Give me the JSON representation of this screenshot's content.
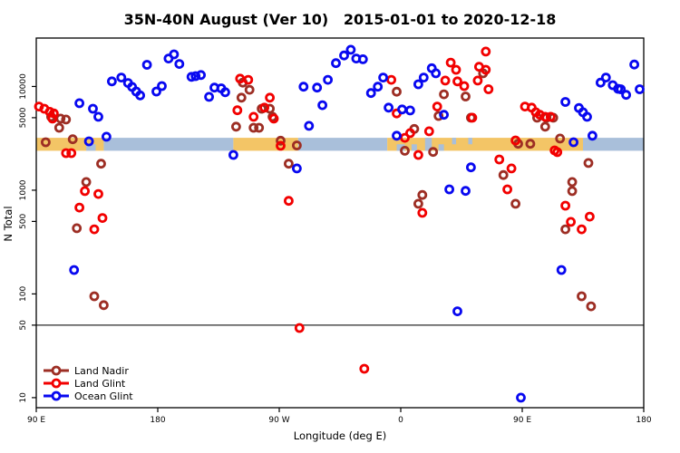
{
  "title": "35N-40N August (Ver 10)   2015-01-01 to 2020-12-18",
  "colors": {
    "land_nadir": "#9D2E24",
    "land_glint": "#F20000",
    "ocean_glint": "#0808F0",
    "band_land": "#F3C566",
    "band_ocean": "#A9BFDA",
    "frame": "#000000",
    "reference_line": "#2b2b2b"
  },
  "chart_data": {
    "type": "scatter",
    "title": "35N-40N August (Ver 10)   2015-01-01 to 2020-12-18",
    "xlabel": "Longitude (deg E)",
    "ylabel": "N Total",
    "x_axis": {
      "domain": [
        90,
        540
      ],
      "ticks": [
        {
          "value": 90,
          "label": "90 E"
        },
        {
          "value": 180,
          "label": "180"
        },
        {
          "value": 270,
          "label": "90 W"
        },
        {
          "value": 360,
          "label": "0"
        },
        {
          "value": 450,
          "label": "90 E"
        },
        {
          "value": 540,
          "label": "180"
        }
      ]
    },
    "y_axis": {
      "scale": "log",
      "domain": [
        8,
        29300
      ],
      "ticks": [
        {
          "value": 10,
          "label": "10"
        },
        {
          "value": 50,
          "label": "50"
        },
        {
          "value": 100,
          "label": "100"
        },
        {
          "value": 500,
          "label": "500"
        },
        {
          "value": 1000,
          "label": "1000"
        },
        {
          "value": 5000,
          "label": "5000"
        },
        {
          "value": 10000,
          "label": "10000"
        }
      ]
    },
    "reference_line_y": 50,
    "land_ocean_band": {
      "n_range": [
        2400,
        3200
      ],
      "segments": [
        {
          "from": 90,
          "to": 140,
          "type": "land"
        },
        {
          "from": 140,
          "to": 236,
          "type": "ocean"
        },
        {
          "from": 236,
          "to": 284,
          "type": "land"
        },
        {
          "from": 284,
          "to": 350,
          "type": "ocean"
        },
        {
          "from": 350,
          "to": 495,
          "type": "land"
        },
        {
          "from": 495,
          "to": 540,
          "type": "ocean"
        }
      ],
      "speckles": [
        {
          "from": 127,
          "to": 134,
          "pos": "bottom",
          "type": "ocean"
        },
        {
          "from": 357,
          "to": 363,
          "pos": "bottom",
          "type": "ocean"
        },
        {
          "from": 368,
          "to": 372,
          "pos": "bottom",
          "type": "ocean"
        },
        {
          "from": 378,
          "to": 383,
          "pos": "full",
          "type": "ocean"
        },
        {
          "from": 388,
          "to": 392,
          "pos": "bottom",
          "type": "ocean"
        },
        {
          "from": 398,
          "to": 401,
          "pos": "top",
          "type": "ocean"
        },
        {
          "from": 410,
          "to": 413,
          "pos": "top",
          "type": "ocean"
        }
      ]
    },
    "legend": {
      "position": "bottom-left"
    },
    "series": [
      {
        "name": "Land Nadir",
        "color_key": "land_nadir",
        "points": [
          [
            101,
            5100
          ],
          [
            108,
            4900
          ],
          [
            112,
            4800
          ],
          [
            107,
            4000
          ],
          [
            117,
            3100
          ],
          [
            97,
            2900
          ],
          [
            138,
            1800
          ],
          [
            127,
            1200
          ],
          [
            120,
            430
          ],
          [
            133,
            95
          ],
          [
            140,
            78
          ],
          [
            243,
            10900
          ],
          [
            248,
            9300
          ],
          [
            242,
            7800
          ],
          [
            257,
            6100
          ],
          [
            263,
            6100
          ],
          [
            265,
            5100
          ],
          [
            238,
            4100
          ],
          [
            251,
            4000
          ],
          [
            255,
            4000
          ],
          [
            271,
            3000
          ],
          [
            283,
            2700
          ],
          [
            277,
            1800
          ],
          [
            357,
            8900
          ],
          [
            392,
            8400
          ],
          [
            408,
            8000
          ],
          [
            421,
            13400
          ],
          [
            388,
            5200
          ],
          [
            412,
            5000
          ],
          [
            370,
            3900
          ],
          [
            363,
            2400
          ],
          [
            384,
            2340
          ],
          [
            376,
            900
          ],
          [
            373,
            740
          ],
          [
            436,
            1400
          ],
          [
            461,
            5000
          ],
          [
            468,
            5000
          ],
          [
            473,
            5000
          ],
          [
            467,
            4100
          ],
          [
            447,
            2800
          ],
          [
            456,
            2800
          ],
          [
            478,
            3150
          ],
          [
            445,
            740
          ],
          [
            487,
            1200
          ],
          [
            487,
            980
          ],
          [
            499,
            1830
          ],
          [
            482,
            420
          ],
          [
            494,
            95
          ],
          [
            501,
            76
          ]
        ]
      },
      {
        "name": "Land Glint",
        "color_key": "land_glint",
        "points": [
          [
            92,
            6400
          ],
          [
            96,
            6100
          ],
          [
            100,
            5700
          ],
          [
            103,
            5500
          ],
          [
            102,
            4900
          ],
          [
            112,
            2280
          ],
          [
            116,
            2280
          ],
          [
            126,
            980
          ],
          [
            136,
            920
          ],
          [
            122,
            680
          ],
          [
            139,
            540
          ],
          [
            133,
            420
          ],
          [
            241,
            11900
          ],
          [
            247,
            11600
          ],
          [
            239,
            5900
          ],
          [
            263,
            7800
          ],
          [
            259,
            6250
          ],
          [
            251,
            5100
          ],
          [
            266,
            4900
          ],
          [
            271,
            2680
          ],
          [
            277,
            790
          ],
          [
            285,
            47
          ],
          [
            353,
            11600
          ],
          [
            357,
            5500
          ],
          [
            363,
            3200
          ],
          [
            367,
            3550
          ],
          [
            373,
            2190
          ],
          [
            381,
            3700
          ],
          [
            387,
            6400
          ],
          [
            393,
            11400
          ],
          [
            397,
            17000
          ],
          [
            401,
            14500
          ],
          [
            402,
            11200
          ],
          [
            407,
            10100
          ],
          [
            423,
            21700
          ],
          [
            418,
            15500
          ],
          [
            423,
            14500
          ],
          [
            417,
            11400
          ],
          [
            425,
            9400
          ],
          [
            413,
            5000
          ],
          [
            433,
            1980
          ],
          [
            376,
            605
          ],
          [
            333,
            19
          ],
          [
            452,
            6400
          ],
          [
            457,
            6250
          ],
          [
            460,
            5640
          ],
          [
            463,
            5330
          ],
          [
            467,
            5100
          ],
          [
            471,
            5100
          ],
          [
            445,
            3020
          ],
          [
            474,
            2420
          ],
          [
            476,
            2330
          ],
          [
            442,
            1620
          ],
          [
            439,
            1020
          ],
          [
            482,
            710
          ],
          [
            500,
            556
          ],
          [
            486,
            495
          ],
          [
            494,
            420
          ]
        ]
      },
      {
        "name": "Ocean Glint",
        "color_key": "ocean_glint",
        "points": [
          [
            192,
            20400
          ],
          [
            188,
            18600
          ],
          [
            196,
            16500
          ],
          [
            205,
            12400
          ],
          [
            172,
            16200
          ],
          [
            146,
            11200
          ],
          [
            153,
            12200
          ],
          [
            158,
            10800
          ],
          [
            161,
            9900
          ],
          [
            164,
            8950
          ],
          [
            167,
            8200
          ],
          [
            179,
            8950
          ],
          [
            183,
            10100
          ],
          [
            122,
            6900
          ],
          [
            132,
            6100
          ],
          [
            136,
            5100
          ],
          [
            129,
            2960
          ],
          [
            142,
            3280
          ],
          [
            118,
            170
          ],
          [
            208,
            12600
          ],
          [
            212,
            12900
          ],
          [
            218,
            7950
          ],
          [
            222,
            9750
          ],
          [
            227,
            9600
          ],
          [
            230,
            8800
          ],
          [
            288,
            9950
          ],
          [
            298,
            9750
          ],
          [
            306,
            11600
          ],
          [
            312,
            16800
          ],
          [
            318,
            19900
          ],
          [
            302,
            6600
          ],
          [
            292,
            4170
          ],
          [
            236,
            2190
          ],
          [
            283,
            1620
          ],
          [
            323,
            22600
          ],
          [
            327,
            18600
          ],
          [
            332,
            18300
          ],
          [
            343,
            9950
          ],
          [
            338,
            8650
          ],
          [
            347,
            12200
          ],
          [
            373,
            10500
          ],
          [
            377,
            12200
          ],
          [
            383,
            15000
          ],
          [
            386,
            13400
          ],
          [
            351,
            6250
          ],
          [
            361,
            6000
          ],
          [
            367,
            5870
          ],
          [
            392,
            5330
          ],
          [
            357,
            3350
          ],
          [
            412,
            1660
          ],
          [
            396,
            1020
          ],
          [
            408,
            985
          ],
          [
            533,
            16300
          ],
          [
            508,
            10900
          ],
          [
            512,
            12200
          ],
          [
            517,
            10300
          ],
          [
            521,
            9500
          ],
          [
            523,
            9400
          ],
          [
            527,
            8300
          ],
          [
            537,
            9400
          ],
          [
            482,
            7100
          ],
          [
            492,
            6200
          ],
          [
            495,
            5640
          ],
          [
            498,
            5100
          ],
          [
            502,
            3350
          ],
          [
            488,
            2900
          ],
          [
            402,
            68
          ],
          [
            479,
            170
          ],
          [
            449,
            10
          ]
        ]
      }
    ]
  }
}
